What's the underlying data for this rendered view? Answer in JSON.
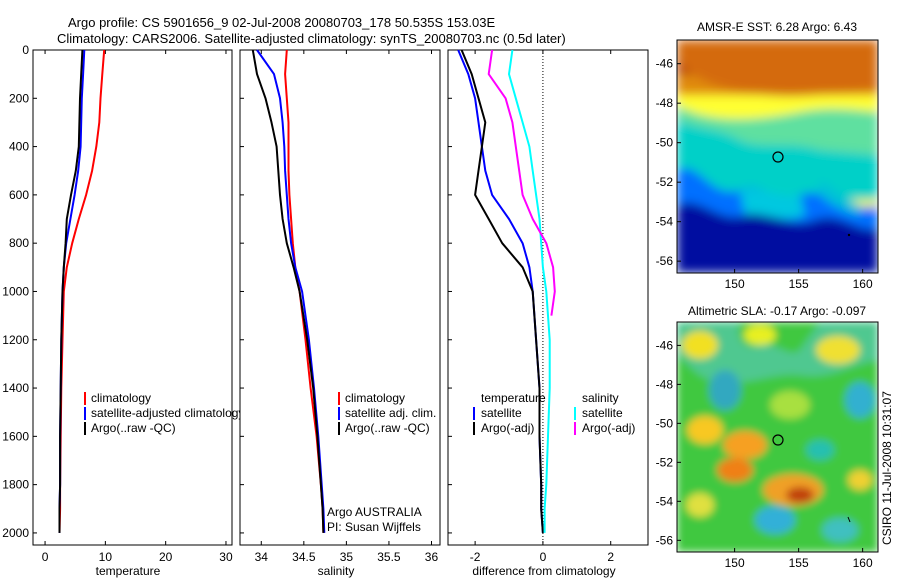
{
  "figure": {
    "title_line1": "Argo profile: CS 5901656_9 02-Jul-2008 20080703_178 50.535S 153.03E",
    "title_line2": "Climatology: CARS2006. Satellite-adjusted climatology: synTS_20080703.nc (0.5d later)",
    "side_stamp": "CSIRO 11-Jul-2008 10:31:07",
    "colors": {
      "climatology": "#ff0000",
      "satellite": "#0000ff",
      "argo": "#000000",
      "sal_satellite": "#00ffff",
      "sal_argo": "#ff00ff"
    }
  },
  "chart_data": [
    {
      "type": "line",
      "xlabel": "temperature",
      "xlim": [
        -2,
        31
      ],
      "ylim": [
        2050,
        0
      ],
      "xticks": [
        0,
        10,
        20,
        30
      ],
      "yticks": [
        0,
        200,
        400,
        600,
        800,
        1000,
        1200,
        1400,
        1600,
        1800,
        2000
      ],
      "legend": [
        "climatology",
        "satellite-adjusted climatology",
        "Argo(..raw -QC)"
      ],
      "legend_placement": "lower-right",
      "series": [
        {
          "name": "climatology",
          "color": "#ff0000",
          "x": [
            9.8,
            9.5,
            9.2,
            9.0,
            8.5,
            7.8,
            6.8,
            5.6,
            4.5,
            3.6,
            3.1,
            2.9,
            2.7,
            2.6,
            2.5,
            2.5,
            2.4
          ],
          "y": [
            0,
            100,
            200,
            300,
            400,
            500,
            600,
            700,
            800,
            900,
            1000,
            1200,
            1400,
            1600,
            1800,
            1900,
            2000
          ]
        },
        {
          "name": "satellite-adjusted climatology",
          "color": "#0000ff",
          "x": [
            6.5,
            6.3,
            6.1,
            6.0,
            5.9,
            5.5,
            4.9,
            4.2,
            3.5,
            3.1,
            2.9,
            2.7,
            2.6,
            2.5,
            2.5,
            2.4,
            2.4
          ],
          "y": [
            0,
            100,
            200,
            300,
            400,
            500,
            600,
            700,
            800,
            900,
            1000,
            1200,
            1400,
            1600,
            1800,
            1900,
            2000
          ]
        },
        {
          "name": "Argo(..raw -QC)",
          "color": "#000000",
          "x": [
            6.2,
            6.0,
            5.8,
            5.7,
            5.6,
            5.1,
            4.3,
            3.6,
            3.4,
            3.1,
            2.9,
            2.7,
            2.6,
            2.5,
            2.5,
            2.4,
            2.4
          ],
          "y": [
            0,
            100,
            200,
            300,
            400,
            500,
            600,
            700,
            800,
            900,
            1000,
            1200,
            1400,
            1600,
            1800,
            1900,
            2000
          ]
        }
      ]
    },
    {
      "type": "line",
      "xlabel": "salinity",
      "xlim": [
        33.75,
        36.1
      ],
      "ylim": [
        2050,
        0
      ],
      "xticks": [
        34,
        34.5,
        35,
        35.5,
        36
      ],
      "legend": [
        "climatology",
        "satellite adj. clim.",
        "Argo(..raw -QC)"
      ],
      "legend_placement": "lower-right",
      "annotation_line1": "Argo AUSTRALIA",
      "annotation_line2": "PI: Susan Wijffels",
      "series": [
        {
          "name": "climatology",
          "color": "#ff0000",
          "x": [
            34.3,
            34.28,
            34.3,
            34.32,
            34.32,
            34.32,
            34.33,
            34.35,
            34.37,
            34.4,
            34.45,
            34.52,
            34.58,
            34.65,
            34.7,
            34.72,
            34.73
          ],
          "y": [
            0,
            100,
            200,
            300,
            400,
            500,
            600,
            700,
            800,
            900,
            1000,
            1200,
            1400,
            1600,
            1800,
            1900,
            2000
          ]
        },
        {
          "name": "satellite adj. clim.",
          "color": "#0000ff",
          "x": [
            33.95,
            34.15,
            34.22,
            34.25,
            34.27,
            34.28,
            34.3,
            34.32,
            34.35,
            34.4,
            34.48,
            34.56,
            34.62,
            34.67,
            34.71,
            34.73,
            34.74
          ],
          "y": [
            0,
            100,
            200,
            300,
            400,
            500,
            600,
            700,
            800,
            900,
            1000,
            1200,
            1400,
            1600,
            1800,
            1900,
            2000
          ]
        },
        {
          "name": "Argo(..raw -QC)",
          "color": "#000000",
          "x": [
            33.9,
            33.95,
            34.05,
            34.12,
            34.18,
            34.2,
            34.22,
            34.25,
            34.3,
            34.38,
            34.45,
            34.54,
            34.61,
            34.66,
            34.7,
            34.72,
            34.73
          ],
          "y": [
            0,
            100,
            200,
            300,
            400,
            500,
            600,
            700,
            800,
            900,
            1000,
            1200,
            1400,
            1600,
            1800,
            1900,
            2000
          ]
        }
      ]
    },
    {
      "type": "line",
      "xlabel": "difference from climatology",
      "xlim": [
        -2.8,
        3.1
      ],
      "ylim": [
        2050,
        0
      ],
      "xticks": [
        -2,
        0,
        2
      ],
      "zero_line": "dotted",
      "legend": [
        "temperature",
        "satellite",
        "Argo(-adj)",
        "salinity",
        "satellite",
        "Argo(-adj)"
      ],
      "legend_placement": "lower-right",
      "series": [
        {
          "name": "temperature satellite",
          "color": "#0000ff",
          "x": [
            -2.5,
            -2.2,
            -2.0,
            -1.9,
            -1.8,
            -1.7,
            -1.5,
            -1.0,
            -0.6,
            -0.4,
            -0.3,
            -0.2,
            -0.1,
            -0.1,
            -0.05,
            -0.05,
            0.0
          ],
          "y": [
            0,
            100,
            200,
            300,
            400,
            500,
            600,
            700,
            800,
            900,
            1000,
            1200,
            1400,
            1600,
            1800,
            1900,
            2000
          ]
        },
        {
          "name": "temperature Argo(-adj)",
          "color": "#000000",
          "x": [
            -2.4,
            -2.1,
            -1.9,
            -1.7,
            -1.8,
            -1.9,
            -2.0,
            -1.6,
            -1.2,
            -0.6,
            -0.3,
            -0.2,
            -0.1,
            -0.1,
            -0.05,
            -0.05,
            0.0
          ],
          "y": [
            0,
            100,
            200,
            300,
            400,
            500,
            600,
            700,
            800,
            900,
            1000,
            1200,
            1400,
            1600,
            1800,
            1900,
            2000
          ]
        },
        {
          "name": "salinity satellite",
          "color": "#00ffff",
          "x": [
            -0.9,
            -1.0,
            -0.8,
            -0.6,
            -0.4,
            -0.3,
            -0.2,
            -0.1,
            -0.05,
            0.0,
            0.1,
            0.2,
            0.2,
            0.15,
            0.1,
            0.05,
            0.05
          ],
          "y": [
            0,
            100,
            200,
            300,
            400,
            500,
            600,
            700,
            800,
            900,
            1000,
            1200,
            1400,
            1600,
            1800,
            1900,
            2000
          ]
        },
        {
          "name": "salinity Argo(-adj)",
          "color": "#ff00ff",
          "x": [
            -1.5,
            -1.6,
            -1.1,
            -0.9,
            -0.8,
            -0.7,
            -0.6,
            -0.3,
            0.1,
            0.3,
            0.35,
            0.25
          ],
          "y": [
            0,
            100,
            200,
            300,
            400,
            500,
            600,
            700,
            800,
            900,
            1000,
            1100
          ]
        }
      ]
    },
    {
      "type": "heatmap",
      "title": "AMSR-E SST: 6.28 Argo: 6.43",
      "xlim": [
        145.5,
        161.2
      ],
      "ylim": [
        -56.6,
        -44.8
      ],
      "xticks": [
        150,
        155,
        160
      ],
      "yticks": [
        -46,
        -48,
        -50,
        -52,
        -54,
        -56
      ],
      "marker": {
        "lon": 153.03,
        "lat": -50.535
      },
      "colormap": "jet"
    },
    {
      "type": "heatmap",
      "title": "Altimetric SLA: -0.17 Argo: -0.097",
      "xlim": [
        145.5,
        161.2
      ],
      "ylim": [
        -56.6,
        -44.8
      ],
      "xticks": [
        150,
        155,
        160
      ],
      "yticks": [
        -46,
        -48,
        -50,
        -52,
        -54,
        -56
      ],
      "marker": {
        "lon": 153.03,
        "lat": -50.535
      },
      "colormap": "jet"
    }
  ]
}
